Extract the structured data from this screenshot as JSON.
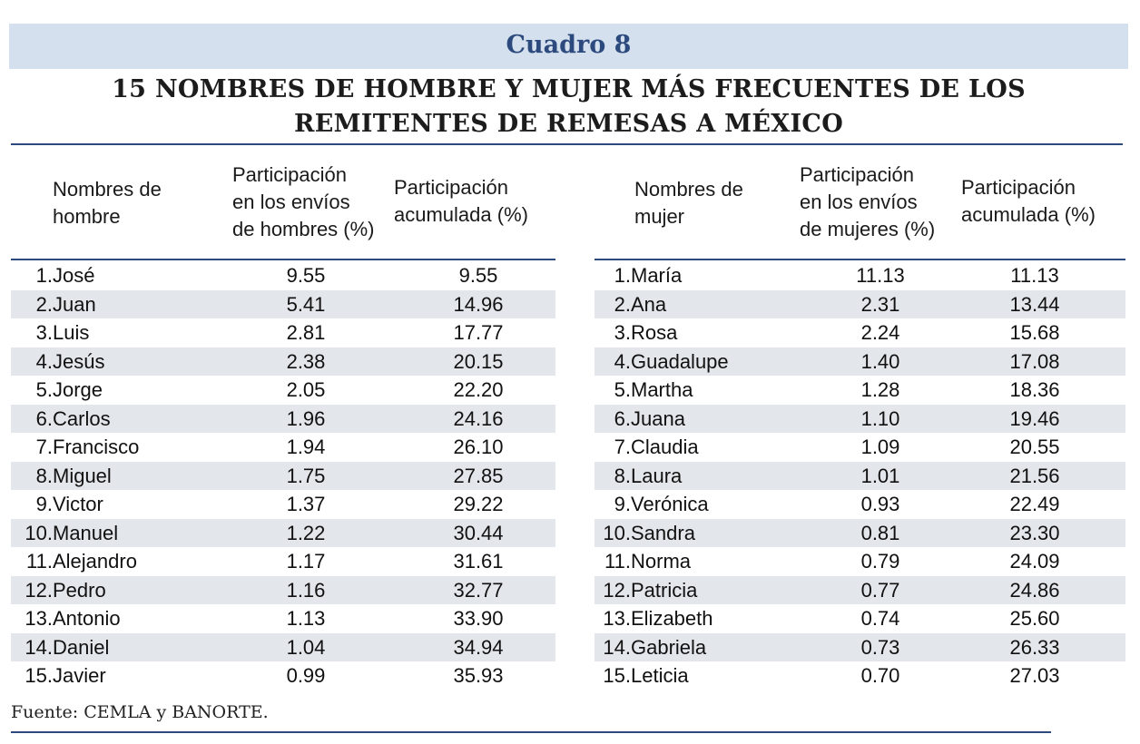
{
  "header": {
    "label": "Cuadro 8",
    "title_line1": "15 NOMBRES DE HOMBRE Y MUJER MÁS FRECUENTES DE LOS",
    "title_line2": "REMITENTES DE REMESAS A MÉXICO"
  },
  "men": {
    "col_name": [
      "Nombres de",
      "hombre"
    ],
    "col_share": [
      "Participación",
      "en los envíos",
      "de hombres (%)"
    ],
    "col_cum": [
      "Participación",
      "acumulada (%)"
    ],
    "rows": [
      {
        "n": "1.",
        "name": "José",
        "share": "9.55",
        "cum": "9.55"
      },
      {
        "n": "2.",
        "name": "Juan",
        "share": "5.41",
        "cum": "14.96"
      },
      {
        "n": "3.",
        "name": "Luis",
        "share": "2.81",
        "cum": "17.77"
      },
      {
        "n": "4.",
        "name": "Jesús",
        "share": "2.38",
        "cum": "20.15"
      },
      {
        "n": "5.",
        "name": "Jorge",
        "share": "2.05",
        "cum": "22.20"
      },
      {
        "n": "6.",
        "name": "Carlos",
        "share": "1.96",
        "cum": "24.16"
      },
      {
        "n": "7.",
        "name": "Francisco",
        "share": "1.94",
        "cum": "26.10"
      },
      {
        "n": "8.",
        "name": "Miguel",
        "share": "1.75",
        "cum": "27.85"
      },
      {
        "n": "9.",
        "name": "Victor",
        "share": "1.37",
        "cum": "29.22"
      },
      {
        "n": "10.",
        "name": "Manuel",
        "share": "1.22",
        "cum": "30.44"
      },
      {
        "n": "11.",
        "name": "Alejandro",
        "share": "1.17",
        "cum": "31.61"
      },
      {
        "n": "12.",
        "name": "Pedro",
        "share": "1.16",
        "cum": "32.77"
      },
      {
        "n": "13.",
        "name": "Antonio",
        "share": "1.13",
        "cum": "33.90"
      },
      {
        "n": "14.",
        "name": "Daniel",
        "share": "1.04",
        "cum": "34.94"
      },
      {
        "n": "15.",
        "name": "Javier",
        "share": "0.99",
        "cum": "35.93"
      }
    ]
  },
  "women": {
    "col_name": [
      "Nombres de",
      "mujer"
    ],
    "col_share": [
      "Participación",
      "en los envíos",
      "de mujeres (%)"
    ],
    "col_cum": [
      "Participación",
      "acumulada (%)"
    ],
    "rows": [
      {
        "n": "1.",
        "name": "María",
        "share": "11.13",
        "cum": "11.13"
      },
      {
        "n": "2.",
        "name": "Ana",
        "share": "2.31",
        "cum": "13.44"
      },
      {
        "n": "3.",
        "name": "Rosa",
        "share": "2.24",
        "cum": "15.68"
      },
      {
        "n": "4.",
        "name": "Guadalupe",
        "share": "1.40",
        "cum": "17.08"
      },
      {
        "n": "5.",
        "name": "Martha",
        "share": "1.28",
        "cum": "18.36"
      },
      {
        "n": "6.",
        "name": "Juana",
        "share": "1.10",
        "cum": "19.46"
      },
      {
        "n": "7.",
        "name": "Claudia",
        "share": "1.09",
        "cum": "20.55"
      },
      {
        "n": "8.",
        "name": "Laura",
        "share": "1.01",
        "cum": "21.56"
      },
      {
        "n": "9.",
        "name": "Verónica",
        "share": "0.93",
        "cum": "22.49"
      },
      {
        "n": "10.",
        "name": "Sandra",
        "share": "0.81",
        "cum": "23.30"
      },
      {
        "n": "11.",
        "name": "Norma",
        "share": "0.79",
        "cum": "24.09"
      },
      {
        "n": "12.",
        "name": "Patricia",
        "share": "0.77",
        "cum": "24.86"
      },
      {
        "n": "13.",
        "name": "Elizabeth",
        "share": "0.74",
        "cum": "25.60"
      },
      {
        "n": "14.",
        "name": "Gabriela",
        "share": "0.73",
        "cum": "26.33"
      },
      {
        "n": "15.",
        "name": "Leticia",
        "share": "0.70",
        "cum": "27.03"
      }
    ]
  },
  "footer": {
    "source": "Fuente: CEMLA y BANORTE."
  }
}
